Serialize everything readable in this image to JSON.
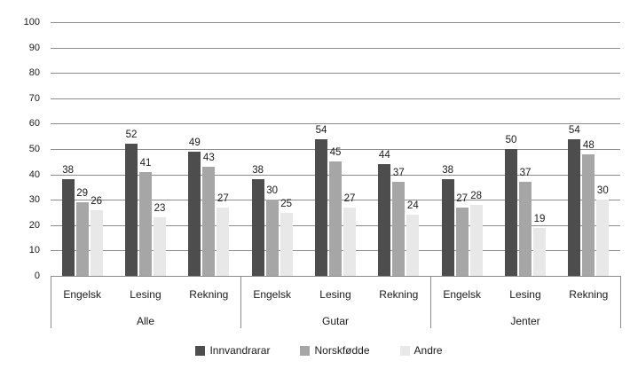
{
  "chart_data": {
    "type": "bar",
    "title": "",
    "xlabel": "",
    "ylabel": "",
    "ylim": [
      0,
      100
    ],
    "y_ticks": [
      0,
      10,
      20,
      30,
      40,
      50,
      60,
      70,
      80,
      90,
      100
    ],
    "grid": true,
    "legend_position": "bottom-center",
    "groups": [
      "Alle",
      "Gutar",
      "Jenter"
    ],
    "categories": [
      "Engelsk",
      "Lesing",
      "Rekning"
    ],
    "series": [
      {
        "name": "Innvandrarar",
        "color": "#4d4d4d",
        "values": [
          [
            38,
            52,
            49
          ],
          [
            38,
            54,
            44
          ],
          [
            38,
            50,
            54
          ]
        ]
      },
      {
        "name": "Norskfødde",
        "color": "#a6a6a6",
        "values": [
          [
            29,
            41,
            43
          ],
          [
            30,
            45,
            37
          ],
          [
            27,
            37,
            48
          ]
        ]
      },
      {
        "name": "Andre",
        "color": "#e8e8e8",
        "values": [
          [
            26,
            23,
            27
          ],
          [
            25,
            27,
            24
          ],
          [
            28,
            19,
            30
          ]
        ]
      }
    ],
    "colors": {
      "gridline": "#8c8c8c",
      "text": "#1a1a1a",
      "background": "#ffffff"
    }
  }
}
